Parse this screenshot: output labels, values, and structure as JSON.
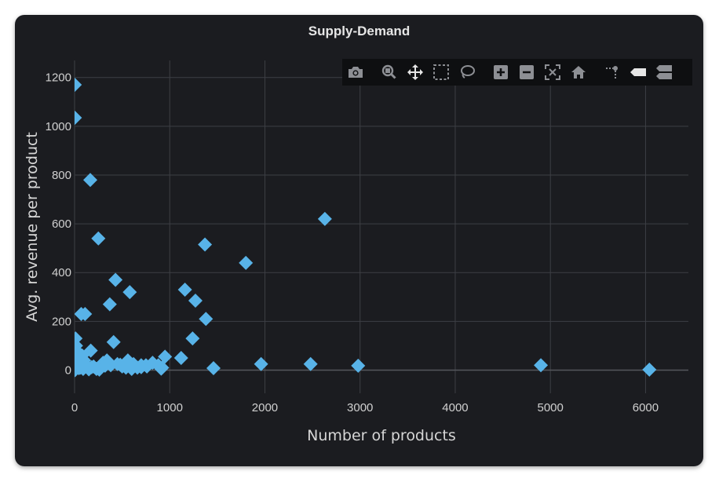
{
  "chart_data": {
    "type": "scatter",
    "title": "Supply-Demand",
    "xlabel": "Number of products",
    "ylabel": "Avg. revenue per product",
    "xlim": [
      0,
      6450
    ],
    "ylim": [
      -95,
      1270
    ],
    "xticks": [
      0,
      1000,
      2000,
      3000,
      4000,
      5000,
      6000
    ],
    "yticks": [
      0,
      200,
      400,
      600,
      800,
      1000,
      1200
    ],
    "grid": true,
    "marker": "diamond",
    "series": [
      {
        "x": [
          2,
          3,
          165,
          250,
          2630,
          1370,
          1800,
          430,
          580,
          370,
          1160,
          1270,
          1380,
          1240,
          110,
          70,
          410,
          950,
          1120,
          1960,
          2480,
          2980,
          4900,
          6040,
          1460,
          10,
          15,
          20,
          25,
          30,
          35,
          40,
          50,
          60,
          80,
          100,
          120,
          140,
          170,
          200,
          230,
          270,
          300,
          340,
          380,
          450,
          500,
          560,
          620,
          660,
          700,
          760,
          820,
          880,
          920,
          5,
          8,
          12,
          45,
          90,
          150,
          180,
          260,
          320,
          480,
          540,
          600,
          700,
          750,
          910
        ],
        "y": [
          1170,
          1035,
          780,
          540,
          620,
          515,
          440,
          370,
          320,
          270,
          330,
          285,
          210,
          130,
          230,
          230,
          115,
          55,
          50,
          25,
          25,
          18,
          20,
          2,
          8,
          130,
          100,
          80,
          70,
          55,
          40,
          30,
          20,
          10,
          60,
          40,
          20,
          10,
          80,
          15,
          5,
          10,
          30,
          40,
          20,
          25,
          15,
          40,
          25,
          10,
          20,
          15,
          30,
          20,
          10,
          0,
          5,
          15,
          8,
          5,
          3,
          12,
          2,
          18,
          22,
          10,
          5,
          12,
          20,
          6
        ],
        "color": "#58b3e8"
      }
    ]
  },
  "modebar": {
    "background": "#0e0f11",
    "icon_color": "#8d8f94",
    "icons": [
      "camera-icon",
      "zoom-icon",
      "pan-icon",
      "box-select-icon",
      "lasso-select-icon",
      "zoom-in-icon",
      "zoom-out-icon",
      "autoscale-icon",
      "reset-axes-icon",
      "toggle-spikelines-icon",
      "hover-closest-icon",
      "hover-compare-icon"
    ]
  }
}
